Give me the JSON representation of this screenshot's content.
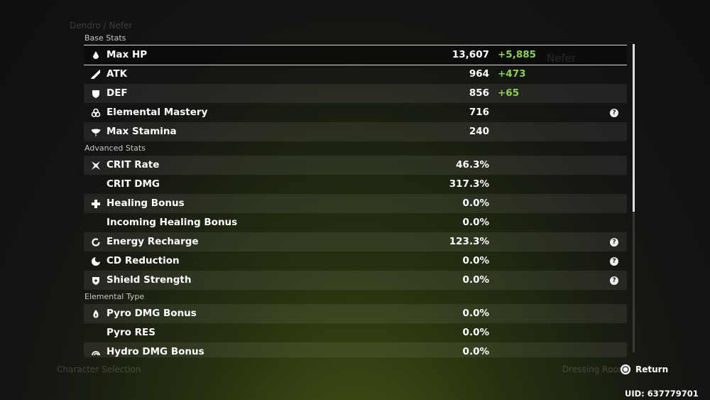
{
  "header": {
    "breadcrumb": "Dendro / Nefer"
  },
  "side_panel": {
    "name": "Nefer"
  },
  "sections": [
    {
      "title": "Base Stats",
      "rows": [
        {
          "name": "Max HP",
          "value": "13,607",
          "bonus": "+5,885",
          "icon": "drop",
          "selected": true
        },
        {
          "name": "ATK",
          "value": "964",
          "bonus": "+473",
          "icon": "sword"
        },
        {
          "name": "DEF",
          "value": "856",
          "bonus": "+65",
          "icon": "shield"
        },
        {
          "name": "Elemental Mastery",
          "value": "716",
          "icon": "rings",
          "help": true
        },
        {
          "name": "Max Stamina",
          "value": "240",
          "icon": "wing"
        }
      ]
    },
    {
      "title": "Advanced Stats",
      "rows": [
        {
          "name": "CRIT Rate",
          "value": "46.3%",
          "icon": "star"
        },
        {
          "name": "CRIT DMG",
          "value": "317.3%"
        },
        {
          "name": "Healing Bonus",
          "value": "0.0%",
          "icon": "cross"
        },
        {
          "name": "Incoming Healing Bonus",
          "value": "0.0%"
        },
        {
          "name": "Energy Recharge",
          "value": "123.3%",
          "icon": "ring",
          "help": true
        },
        {
          "name": "CD Reduction",
          "value": "0.0%",
          "icon": "moon",
          "help": true
        },
        {
          "name": "Shield Strength",
          "value": "0.0%",
          "icon": "shield2",
          "help": true
        }
      ]
    },
    {
      "title": "Elemental Type",
      "rows": [
        {
          "name": "Pyro DMG Bonus",
          "value": "0.0%",
          "icon": "flame"
        },
        {
          "name": "Pyro RES",
          "value": "0.0%"
        },
        {
          "name": "Hydro DMG Bonus",
          "value": "0.0%",
          "icon": "wave"
        }
      ]
    }
  ],
  "footer": {
    "left": "Character Selection",
    "middle": "Dressing Room",
    "return": "Return",
    "uid": "UID: 637779701"
  }
}
